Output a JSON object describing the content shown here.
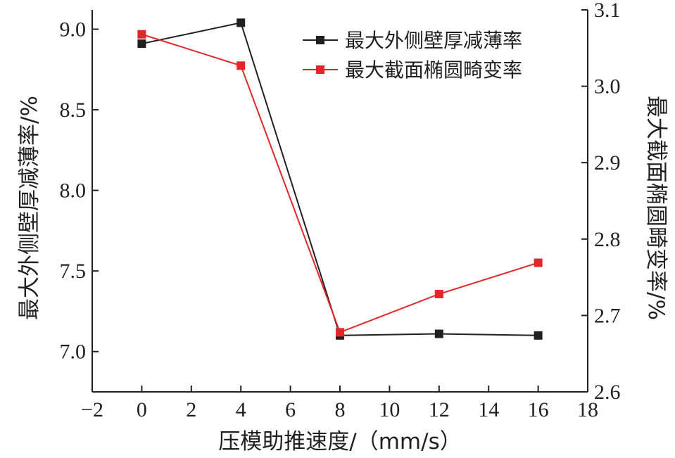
{
  "chart_data": {
    "type": "line",
    "title": "",
    "xlabel": "压模助推速度/（mm/s）",
    "ylabel_left": "最大外侧壁厚减薄率/%",
    "ylabel_right": "最大截面椭圆畸变率/%",
    "xlim": [
      -2,
      18
    ],
    "ylim_left": [
      6.75,
      9.12
    ],
    "ylim_right": [
      2.6,
      3.1
    ],
    "x_ticks": [
      -2,
      0,
      2,
      4,
      6,
      8,
      10,
      12,
      14,
      16,
      18
    ],
    "x_tick_labels": [
      "−2",
      "0",
      "2",
      "4",
      "6",
      "8",
      "10",
      "12",
      "14",
      "16",
      "18"
    ],
    "y_left_ticks": [
      7.0,
      7.5,
      8.0,
      8.5,
      9.0
    ],
    "y_left_tick_labels": [
      "7.0",
      "7.5",
      "8.0",
      "8.5",
      "9.0"
    ],
    "y_right_ticks": [
      2.6,
      2.7,
      2.8,
      2.9,
      3.0,
      3.1
    ],
    "y_right_tick_labels": [
      "2.6",
      "2.7",
      "2.8",
      "2.9",
      "3.0",
      "3.1"
    ],
    "grid": false,
    "legend_position": "top-right",
    "series": [
      {
        "name": "最大外侧壁厚减薄率",
        "axis": "left",
        "color": "#231f20",
        "x": [
          0,
          4,
          8,
          12,
          16
        ],
        "values": [
          8.91,
          9.04,
          7.1,
          7.11,
          7.1
        ]
      },
      {
        "name": "最大截面椭圆畸变率",
        "axis": "right",
        "color": "#e3262a",
        "x": [
          0,
          4,
          8,
          12,
          16
        ],
        "values": [
          3.068,
          3.027,
          2.678,
          2.728,
          2.769
        ]
      }
    ]
  }
}
